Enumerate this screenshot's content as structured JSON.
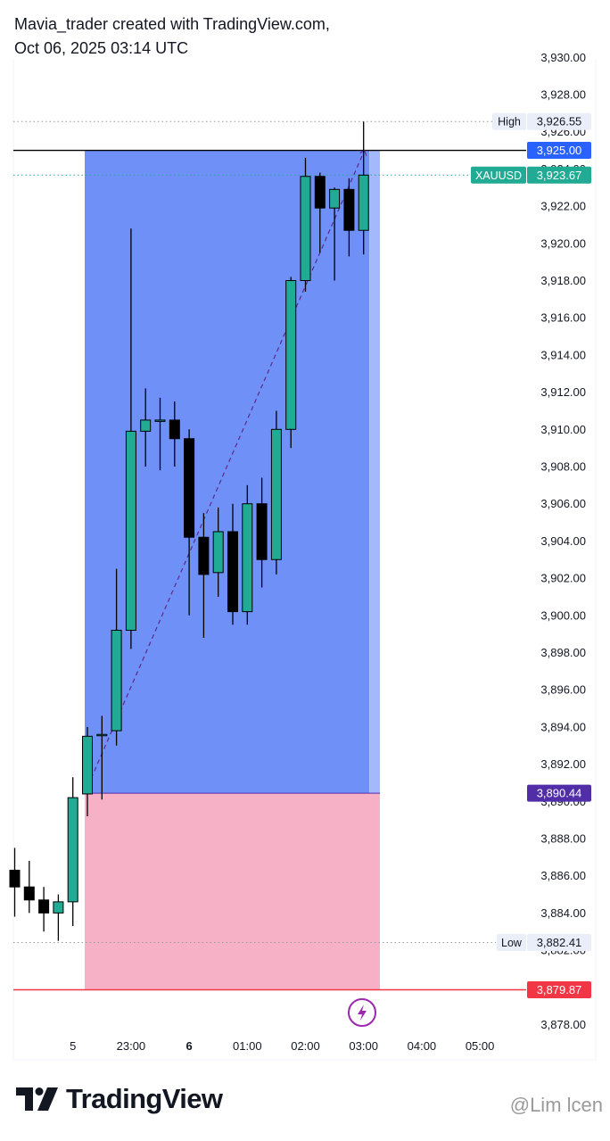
{
  "header": {
    "line1": "Mavia_trader created with TradingView.com,",
    "line2": "Oct 06, 2025 03:14 UTC"
  },
  "footer": {
    "brand": "TradingView",
    "watermark": "@Lim lcen"
  },
  "colors": {
    "up": "#22ab94",
    "down": "#000000",
    "profit": "#6f91f7",
    "profit_light": "#a3b9fb",
    "loss": "#f7b1c7",
    "accent_blue": "#2962ff",
    "entry_purple": "#512da8",
    "stop_red": "#f23645",
    "dots_gray": "#9598a1"
  },
  "chart_data": {
    "type": "candlestick",
    "symbol": "XAUUSD",
    "ylim": [
      3877,
      3931
    ],
    "y_ticks": [
      3878,
      3880,
      3882,
      3884,
      3886,
      3888,
      3890,
      3892,
      3894,
      3896,
      3898,
      3900,
      3902,
      3904,
      3906,
      3908,
      3910,
      3912,
      3914,
      3916,
      3918,
      3920,
      3922,
      3924,
      3926,
      3928,
      3930
    ],
    "y_tick_labels": [
      "3,878.00",
      "3,880.00",
      "3,882.00",
      "3,884.00",
      "3,886.00",
      "3,888.00",
      "3,890.00",
      "3,892.00",
      "3,894.00",
      "3,896.00",
      "3,898.00",
      "3,900.00",
      "3,902.00",
      "3,904.00",
      "3,906.00",
      "3,908.00",
      "3,910.00",
      "3,912.00",
      "3,914.00",
      "3,916.00",
      "3,918.00",
      "3,920.00",
      "3,922.00",
      "3,924.00",
      "3,926.00",
      "3,928.00",
      "3,930.00"
    ],
    "x_ticks": [
      {
        "index": 4,
        "label": "5",
        "bold": false
      },
      {
        "index": 8,
        "label": "23:00",
        "bold": false
      },
      {
        "index": 12,
        "label": "6",
        "bold": true
      },
      {
        "index": 16,
        "label": "01:00",
        "bold": false
      },
      {
        "index": 20,
        "label": "02:00",
        "bold": false
      },
      {
        "index": 24,
        "label": "03:00",
        "bold": false
      },
      {
        "index": 28,
        "label": "04:00",
        "bold": false
      },
      {
        "index": 32,
        "label": "05:00",
        "bold": false
      }
    ],
    "candles": [
      {
        "o": 3886.3,
        "h": 3887.5,
        "l": 3883.8,
        "c": 3885.4
      },
      {
        "o": 3885.4,
        "h": 3886.8,
        "l": 3884.0,
        "c": 3884.7
      },
      {
        "o": 3884.7,
        "h": 3885.4,
        "l": 3883.0,
        "c": 3884.0
      },
      {
        "o": 3884.0,
        "h": 3885.0,
        "l": 3882.5,
        "c": 3884.6
      },
      {
        "o": 3884.6,
        "h": 3891.3,
        "l": 3883.3,
        "c": 3890.2
      },
      {
        "o": 3890.4,
        "h": 3894.0,
        "l": 3889.2,
        "c": 3893.5
      },
      {
        "o": 3893.6,
        "h": 3894.6,
        "l": 3890.1,
        "c": 3893.6
      },
      {
        "o": 3893.8,
        "h": 3902.5,
        "l": 3893.0,
        "c": 3899.2
      },
      {
        "o": 3899.2,
        "h": 3920.8,
        "l": 3898.2,
        "c": 3909.9
      },
      {
        "o": 3909.9,
        "h": 3912.2,
        "l": 3908.0,
        "c": 3910.5
      },
      {
        "o": 3910.5,
        "h": 3911.7,
        "l": 3907.8,
        "c": 3910.5
      },
      {
        "o": 3910.5,
        "h": 3911.5,
        "l": 3908.0,
        "c": 3909.5
      },
      {
        "o": 3909.5,
        "h": 3910.0,
        "l": 3900.0,
        "c": 3904.2
      },
      {
        "o": 3904.2,
        "h": 3905.5,
        "l": 3898.8,
        "c": 3902.2
      },
      {
        "o": 3902.3,
        "h": 3905.8,
        "l": 3901.0,
        "c": 3904.5
      },
      {
        "o": 3904.5,
        "h": 3906.0,
        "l": 3899.5,
        "c": 3900.2
      },
      {
        "o": 3900.2,
        "h": 3907.0,
        "l": 3899.5,
        "c": 3906.0
      },
      {
        "o": 3906.0,
        "h": 3907.4,
        "l": 3901.5,
        "c": 3903.0
      },
      {
        "o": 3903.0,
        "h": 3911.0,
        "l": 3902.2,
        "c": 3910.0
      },
      {
        "o": 3910.0,
        "h": 3918.2,
        "l": 3909.0,
        "c": 3918.0
      },
      {
        "o": 3918.0,
        "h": 3924.6,
        "l": 3917.4,
        "c": 3923.6
      },
      {
        "o": 3923.6,
        "h": 3923.8,
        "l": 3919.5,
        "c": 3921.9
      },
      {
        "o": 3921.9,
        "h": 3923.0,
        "l": 3918.0,
        "c": 3922.9
      },
      {
        "o": 3922.9,
        "h": 3923.5,
        "l": 3919.3,
        "c": 3920.7
      },
      {
        "o": 3920.7,
        "h": 3926.55,
        "l": 3919.4,
        "c": 3923.67
      }
    ],
    "position_tool": {
      "entry": 3890.44,
      "target": 3925.0,
      "stop": 3879.87,
      "start_index": 5,
      "end_index": 25,
      "current_index": 24
    },
    "high_label": "High",
    "high_value": "3,926.55",
    "high_price": 3926.55,
    "low_label": "Low",
    "low_value": "3,882.41",
    "low_price": 3882.41,
    "target_value": "3,925.00",
    "current_symbol": "XAUUSD",
    "current_value": "3,923.67",
    "current_price": 3923.67,
    "entry_value": "3,890.44",
    "stop_value": "3,879.87",
    "legend": "none",
    "grid": false
  }
}
